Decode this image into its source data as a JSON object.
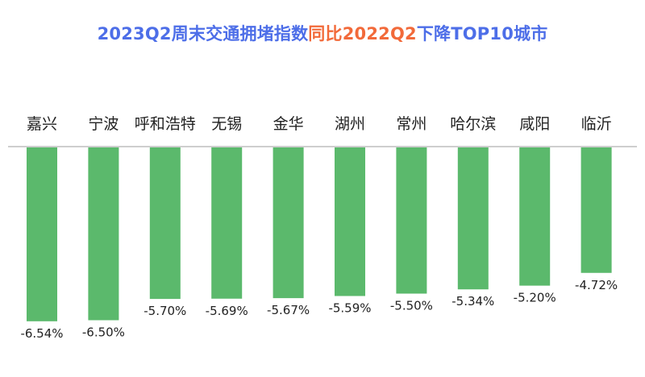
{
  "title_parts": {
    "part1": "2023Q2周末交通拥堵指数",
    "part2": "同比2022Q2",
    "part3": "下降TOP10城市"
  },
  "colors": {
    "title_blue": "#4d6ee8",
    "title_orange": "#f26a3a",
    "bar": "#5bb96c",
    "baseline": "#bdbdbd",
    "label": "#222222"
  },
  "chart_data": {
    "type": "bar",
    "title": "2023Q2周末交通拥堵指数同比2022Q2下降TOP10城市",
    "categories": [
      "嘉兴",
      "宁波",
      "呼和浩特",
      "无锡",
      "金华",
      "湖州",
      "常州",
      "哈尔滨",
      "咸阳",
      "临沂"
    ],
    "values": [
      -6.54,
      -6.5,
      -5.7,
      -5.69,
      -5.67,
      -5.59,
      -5.5,
      -5.34,
      -5.2,
      -4.72
    ],
    "value_labels": [
      "-6.54%",
      "-6.50%",
      "-5.70%",
      "-5.69%",
      "-5.67%",
      "-5.59%",
      "-5.50%",
      "-5.34%",
      "-5.20%",
      "-4.72%"
    ],
    "unit": "%",
    "xlabel": "",
    "ylabel": "",
    "grid": false,
    "legend": "none",
    "category_axis_position": "top"
  }
}
